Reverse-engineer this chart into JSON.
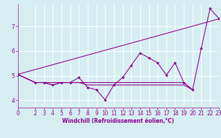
{
  "line1_x": [
    0,
    23
  ],
  "line1_y": [
    5.05,
    7.3
  ],
  "line2_x": [
    0,
    2,
    3,
    4,
    5,
    6,
    7,
    8,
    9,
    10,
    11,
    12,
    13,
    14,
    15,
    16,
    17,
    18,
    19,
    20,
    21,
    22,
    23
  ],
  "line2_y": [
    5.05,
    4.72,
    4.72,
    4.62,
    4.72,
    4.72,
    4.92,
    4.52,
    4.42,
    4.02,
    4.62,
    4.92,
    5.42,
    5.92,
    5.72,
    5.52,
    5.02,
    5.52,
    4.72,
    4.42,
    6.12,
    7.72,
    7.32
  ],
  "line3_x": [
    0,
    2,
    3,
    4,
    5,
    6,
    7,
    8,
    9,
    10,
    11,
    12,
    13,
    14,
    15,
    16,
    17,
    18,
    19,
    20
  ],
  "line3_y": [
    5.05,
    4.72,
    4.72,
    4.72,
    4.72,
    4.72,
    4.72,
    4.72,
    4.72,
    4.72,
    4.72,
    4.72,
    4.72,
    4.72,
    4.72,
    4.72,
    4.72,
    4.72,
    4.72,
    4.42
  ],
  "line4_x": [
    0,
    2,
    3,
    4,
    5,
    6,
    7,
    8,
    9,
    10,
    11,
    12,
    13,
    14,
    15,
    16,
    17,
    18,
    19,
    20
  ],
  "line4_y": [
    5.05,
    4.72,
    4.72,
    4.62,
    4.72,
    4.72,
    4.72,
    4.62,
    4.62,
    4.62,
    4.62,
    4.62,
    4.62,
    4.62,
    4.62,
    4.62,
    4.62,
    4.62,
    4.62,
    4.42
  ],
  "line_color": "#8B008B",
  "bg_color": "#d6eef2",
  "grid_color": "#ffffff",
  "xlabel": "Windchill (Refroidissement éolien,°C)",
  "xlim": [
    0,
    23
  ],
  "ylim": [
    3.7,
    7.9
  ],
  "xticks": [
    0,
    2,
    3,
    4,
    5,
    6,
    7,
    8,
    9,
    10,
    11,
    12,
    13,
    14,
    15,
    16,
    17,
    18,
    19,
    20,
    21,
    22,
    23
  ],
  "yticks": [
    4,
    5,
    6,
    7
  ],
  "xlabel_fontsize": 5.5,
  "tick_fontsize": 5.5,
  "linewidth": 0.8,
  "markersize": 2.2
}
